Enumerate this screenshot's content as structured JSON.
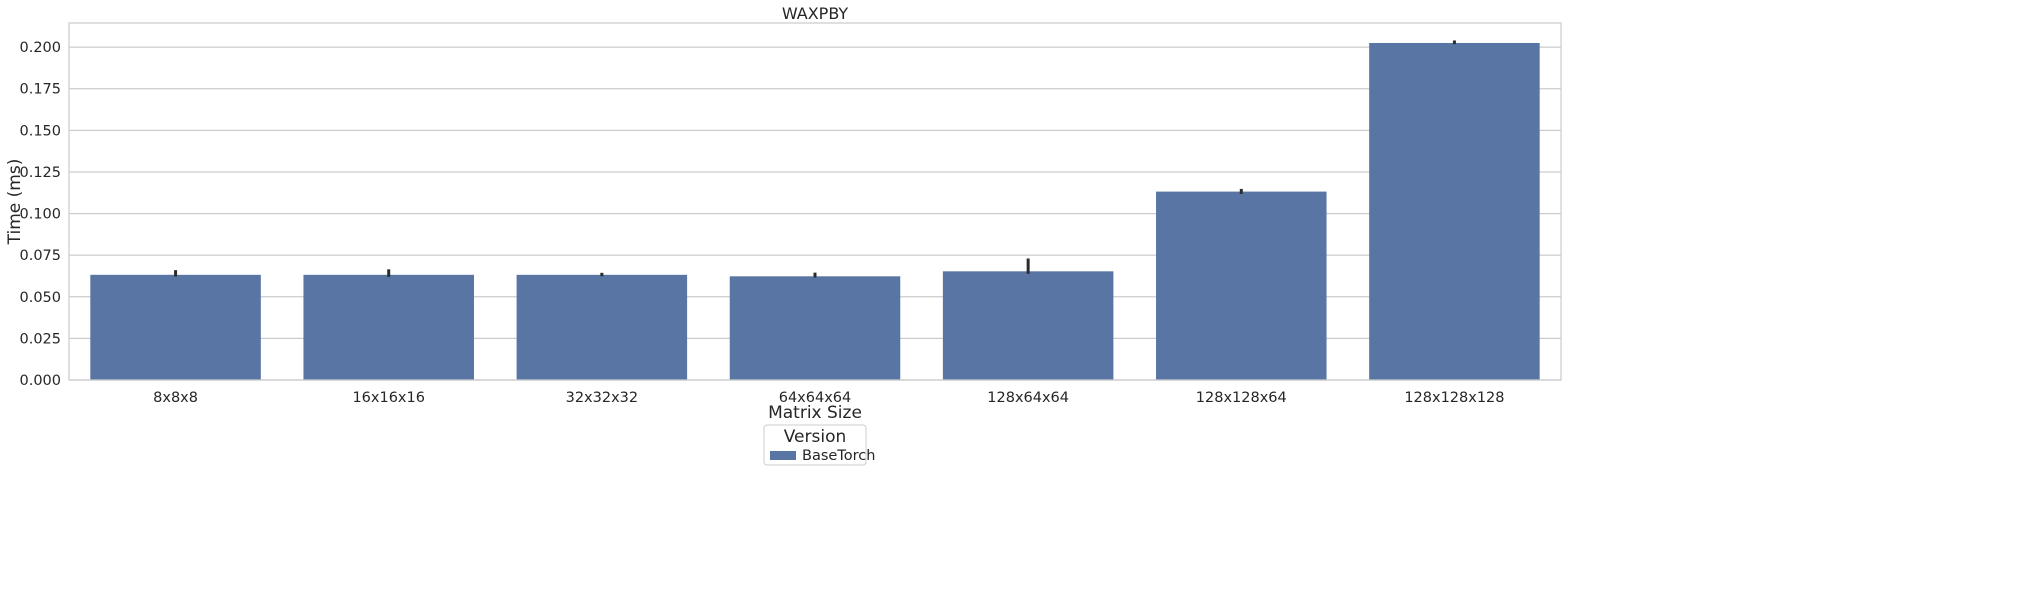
{
  "chart_data": {
    "type": "bar",
    "title": "WAXPBY",
    "xlabel": "Matrix Size",
    "ylabel": "Time (ms)",
    "categories": [
      "8x8x8",
      "16x16x16",
      "32x32x32",
      "64x64x64",
      "128x64x64",
      "128x128x64",
      "128x128x128"
    ],
    "series": [
      {
        "name": "BaseTorch",
        "values": [
          0.0632,
          0.0632,
          0.0632,
          0.0623,
          0.0653,
          0.1132,
          0.2025
        ],
        "error_low": [
          0.0622,
          0.062,
          0.0624,
          0.0616,
          0.0638,
          0.1118,
          0.2018
        ],
        "error_high": [
          0.066,
          0.0665,
          0.0644,
          0.0645,
          0.073,
          0.1148,
          0.204
        ]
      }
    ],
    "ylim": [
      0,
      0.2145
    ],
    "yticks": [
      "0.000",
      "0.025",
      "0.050",
      "0.075",
      "0.100",
      "0.125",
      "0.150",
      "0.175",
      "0.200"
    ],
    "ytick_values": [
      0,
      0.025,
      0.05,
      0.075,
      0.1,
      0.125,
      0.15,
      0.175,
      0.2
    ],
    "grid": true,
    "legend": {
      "title": "Version",
      "placement": "bottom-center"
    },
    "colors": {
      "bar": "#5875a4",
      "errorbar": "#2b2b2b",
      "grid": "#cccccc",
      "spine": "#cccccc"
    }
  }
}
